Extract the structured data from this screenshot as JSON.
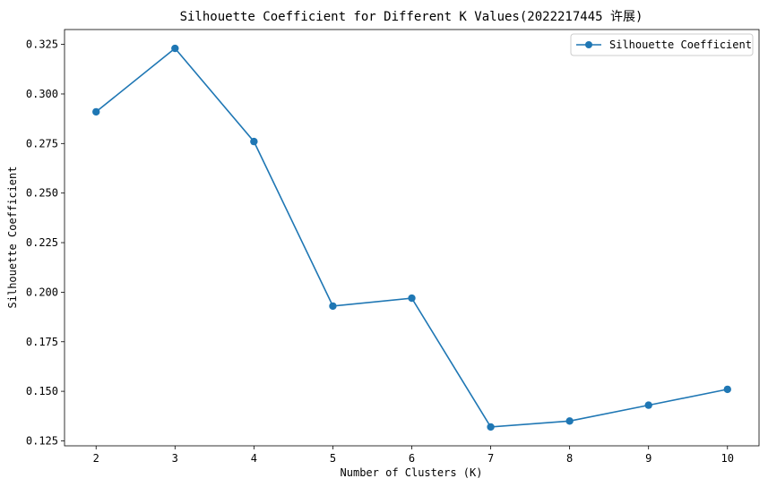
{
  "chart_data": {
    "type": "line",
    "title": "Silhouette Coefficient for Different K Values(2022217445 许展)",
    "xlabel": "Number of Clusters (K)",
    "ylabel": "Silhouette Coefficient",
    "x": [
      2,
      3,
      4,
      5,
      6,
      7,
      8,
      9,
      10
    ],
    "series": [
      {
        "name": "Silhouette Coefficient",
        "values": [
          0.291,
          0.323,
          0.276,
          0.193,
          0.197,
          0.132,
          0.135,
          0.143,
          0.151
        ],
        "color": "#1f77b4",
        "marker": "circle"
      }
    ],
    "xticks": [
      "2",
      "3",
      "4",
      "5",
      "6",
      "7",
      "8",
      "9",
      "10"
    ],
    "yticks": [
      "0.125",
      "0.150",
      "0.175",
      "0.200",
      "0.225",
      "0.250",
      "0.275",
      "0.300",
      "0.325"
    ],
    "xlim": [
      1.6,
      10.4
    ],
    "ylim": [
      0.1225,
      0.3325
    ],
    "grid": false,
    "legend_position": "top-right"
  }
}
